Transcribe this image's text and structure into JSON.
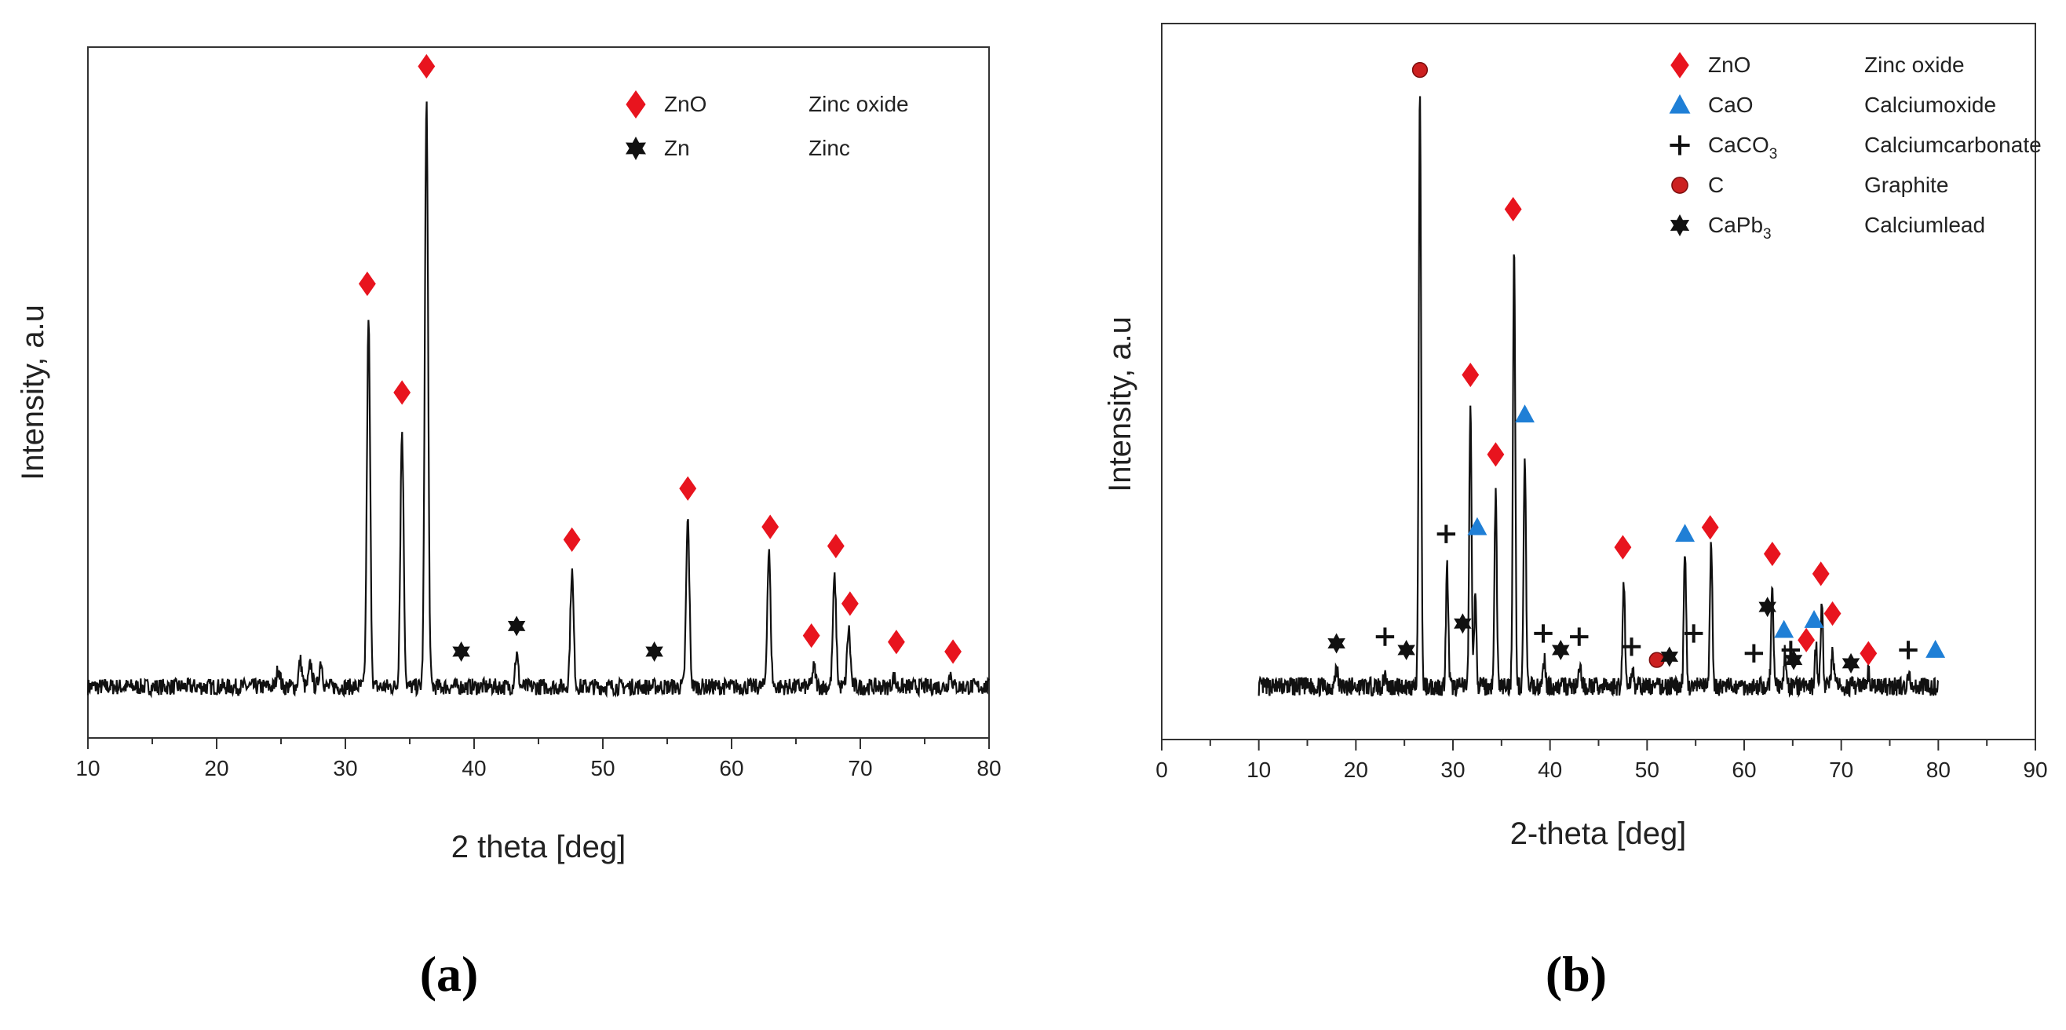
{
  "figure": {
    "panel_labels": [
      "(a)",
      "(b)"
    ]
  },
  "colors": {
    "zno": "#e8141e",
    "zn": "#111111",
    "cao": "#1f7fd6",
    "caco3": "#111111",
    "c": "#cc2020",
    "capb3": "#111111",
    "trace": "#111111"
  },
  "chart_data": [
    {
      "type": "line",
      "panel": "(a)",
      "xlabel": "2 theta [deg]",
      "ylabel": "Intensity, a.u",
      "xlim": [
        10,
        80
      ],
      "ylim": [
        0,
        108
      ],
      "xticks": [
        "10",
        "20",
        "30",
        "40",
        "50",
        "60",
        "70",
        "80"
      ],
      "baseline": 8,
      "peaks": [
        {
          "x": 24.8,
          "y": 11
        },
        {
          "x": 26.5,
          "y": 12
        },
        {
          "x": 27.3,
          "y": 11.5
        },
        {
          "x": 28.1,
          "y": 12
        },
        {
          "x": 31.8,
          "y": 65
        },
        {
          "x": 34.4,
          "y": 48
        },
        {
          "x": 36.3,
          "y": 100
        },
        {
          "x": 43.3,
          "y": 13
        },
        {
          "x": 47.6,
          "y": 26
        },
        {
          "x": 56.6,
          "y": 34
        },
        {
          "x": 62.9,
          "y": 29
        },
        {
          "x": 66.4,
          "y": 11
        },
        {
          "x": 68.0,
          "y": 25
        },
        {
          "x": 69.1,
          "y": 17
        },
        {
          "x": 72.6,
          "y": 9.5
        },
        {
          "x": 77.0,
          "y": 10
        }
      ],
      "legend": [
        {
          "symbol": "diamond",
          "series": "ZnO",
          "description": "Zinc oxide",
          "color": "#e8141e"
        },
        {
          "symbol": "star",
          "series": "Zn",
          "description": "Zinc",
          "color": "#111111"
        }
      ],
      "markers": [
        {
          "series": "ZnO",
          "symbol": "diamond",
          "x": 31.7,
          "y": 71
        },
        {
          "series": "ZnO",
          "symbol": "diamond",
          "x": 34.4,
          "y": 54
        },
        {
          "series": "ZnO",
          "symbol": "diamond",
          "x": 36.3,
          "y": 105
        },
        {
          "series": "ZnO",
          "symbol": "diamond",
          "x": 47.6,
          "y": 31
        },
        {
          "series": "ZnO",
          "symbol": "diamond",
          "x": 56.6,
          "y": 39
        },
        {
          "series": "ZnO",
          "symbol": "diamond",
          "x": 63.0,
          "y": 33
        },
        {
          "series": "ZnO",
          "symbol": "diamond",
          "x": 66.2,
          "y": 16
        },
        {
          "series": "ZnO",
          "symbol": "diamond",
          "x": 68.1,
          "y": 30
        },
        {
          "series": "ZnO",
          "symbol": "diamond",
          "x": 69.2,
          "y": 21
        },
        {
          "series": "ZnO",
          "symbol": "diamond",
          "x": 72.8,
          "y": 15
        },
        {
          "series": "ZnO",
          "symbol": "diamond",
          "x": 77.2,
          "y": 13.5
        },
        {
          "series": "Zn",
          "symbol": "star",
          "x": 39.0,
          "y": 13.5
        },
        {
          "series": "Zn",
          "symbol": "star",
          "x": 43.3,
          "y": 17.5
        },
        {
          "series": "Zn",
          "symbol": "star",
          "x": 54.0,
          "y": 13.5
        }
      ]
    },
    {
      "type": "line",
      "panel": "(b)",
      "xlabel": "2-theta [deg]",
      "ylabel": "Intensity, a.u",
      "xlim": [
        0,
        90
      ],
      "ylim": [
        0,
        108
      ],
      "xticks": [
        "0",
        "10",
        "20",
        "30",
        "40",
        "50",
        "60",
        "70",
        "80",
        "90"
      ],
      "data_range": [
        10,
        80
      ],
      "baseline": 8,
      "peaks": [
        {
          "x": 18.0,
          "y": 11
        },
        {
          "x": 23.0,
          "y": 10
        },
        {
          "x": 26.6,
          "y": 97
        },
        {
          "x": 29.4,
          "y": 26
        },
        {
          "x": 31.8,
          "y": 50
        },
        {
          "x": 32.3,
          "y": 21
        },
        {
          "x": 34.4,
          "y": 37
        },
        {
          "x": 36.3,
          "y": 74
        },
        {
          "x": 37.4,
          "y": 43
        },
        {
          "x": 39.4,
          "y": 12
        },
        {
          "x": 43.1,
          "y": 11
        },
        {
          "x": 47.6,
          "y": 24
        },
        {
          "x": 48.5,
          "y": 11
        },
        {
          "x": 53.9,
          "y": 28
        },
        {
          "x": 56.6,
          "y": 30
        },
        {
          "x": 62.9,
          "y": 23
        },
        {
          "x": 64.2,
          "y": 13
        },
        {
          "x": 67.4,
          "y": 14
        },
        {
          "x": 68.0,
          "y": 20
        },
        {
          "x": 69.1,
          "y": 14
        },
        {
          "x": 72.8,
          "y": 10
        },
        {
          "x": 77.0,
          "y": 10
        }
      ],
      "legend": [
        {
          "symbol": "diamond",
          "series": "ZnO",
          "description": "Zinc oxide",
          "color": "#e8141e"
        },
        {
          "symbol": "triangle",
          "series": "CaO",
          "description": "Calciumoxide",
          "color": "#1f7fd6"
        },
        {
          "symbol": "plus",
          "series": "CaCO",
          "subscript": "3",
          "description": "Calciumcarbonate",
          "color": "#111111"
        },
        {
          "symbol": "circle",
          "series": "C",
          "description": "Graphite",
          "color": "#cc2020"
        },
        {
          "symbol": "star",
          "series": "CaPb",
          "subscript": "3",
          "description": "Calciumlead",
          "color": "#111111"
        }
      ],
      "markers": [
        {
          "series": "C",
          "symbol": "circle",
          "x": 26.6,
          "y": 101
        },
        {
          "series": "ZnO",
          "symbol": "diamond",
          "x": 36.2,
          "y": 80
        },
        {
          "series": "ZnO",
          "symbol": "diamond",
          "x": 31.8,
          "y": 55
        },
        {
          "series": "ZnO",
          "symbol": "diamond",
          "x": 34.4,
          "y": 43
        },
        {
          "series": "ZnO",
          "symbol": "diamond",
          "x": 47.5,
          "y": 29
        },
        {
          "series": "ZnO",
          "symbol": "diamond",
          "x": 56.5,
          "y": 32
        },
        {
          "series": "ZnO",
          "symbol": "diamond",
          "x": 62.9,
          "y": 28
        },
        {
          "series": "ZnO",
          "symbol": "diamond",
          "x": 67.9,
          "y": 25
        },
        {
          "series": "ZnO",
          "symbol": "diamond",
          "x": 69.1,
          "y": 19
        },
        {
          "series": "ZnO",
          "symbol": "diamond",
          "x": 66.4,
          "y": 15
        },
        {
          "series": "ZnO",
          "symbol": "diamond",
          "x": 72.8,
          "y": 13
        },
        {
          "series": "CaO",
          "symbol": "triangle",
          "x": 37.4,
          "y": 49
        },
        {
          "series": "CaO",
          "symbol": "triangle",
          "x": 32.5,
          "y": 32
        },
        {
          "series": "CaO",
          "symbol": "triangle",
          "x": 53.9,
          "y": 31
        },
        {
          "series": "CaO",
          "symbol": "triangle",
          "x": 64.1,
          "y": 16.5
        },
        {
          "series": "CaO",
          "symbol": "triangle",
          "x": 67.2,
          "y": 18
        },
        {
          "series": "CaO",
          "symbol": "triangle",
          "x": 79.7,
          "y": 13.5
        },
        {
          "series": "CaCO3",
          "symbol": "plus",
          "x": 23.0,
          "y": 15.5
        },
        {
          "series": "CaCO3",
          "symbol": "plus",
          "x": 29.3,
          "y": 31
        },
        {
          "series": "CaCO3",
          "symbol": "plus",
          "x": 39.3,
          "y": 16
        },
        {
          "series": "CaCO3",
          "symbol": "plus",
          "x": 43.0,
          "y": 15.5
        },
        {
          "series": "CaCO3",
          "symbol": "plus",
          "x": 48.4,
          "y": 14
        },
        {
          "series": "CaCO3",
          "symbol": "plus",
          "x": 54.8,
          "y": 16
        },
        {
          "series": "CaCO3",
          "symbol": "plus",
          "x": 61.0,
          "y": 13
        },
        {
          "series": "CaCO3",
          "symbol": "plus",
          "x": 64.8,
          "y": 13.5
        },
        {
          "series": "CaCO3",
          "symbol": "plus",
          "x": 76.9,
          "y": 13.5
        },
        {
          "series": "C",
          "symbol": "circle",
          "x": 51.0,
          "y": 12
        },
        {
          "series": "CaPb3",
          "symbol": "star",
          "x": 18.0,
          "y": 14.5
        },
        {
          "series": "CaPb3",
          "symbol": "star",
          "x": 25.2,
          "y": 13.5
        },
        {
          "series": "CaPb3",
          "symbol": "star",
          "x": 31.0,
          "y": 17.5
        },
        {
          "series": "CaPb3",
          "symbol": "star",
          "x": 41.1,
          "y": 13.5
        },
        {
          "series": "CaPb3",
          "symbol": "star",
          "x": 52.3,
          "y": 12.5
        },
        {
          "series": "CaPb3",
          "symbol": "star",
          "x": 62.4,
          "y": 20
        },
        {
          "series": "CaPb3",
          "symbol": "star",
          "x": 65.1,
          "y": 12
        },
        {
          "series": "CaPb3",
          "symbol": "star",
          "x": 71.0,
          "y": 11.5
        }
      ]
    }
  ]
}
